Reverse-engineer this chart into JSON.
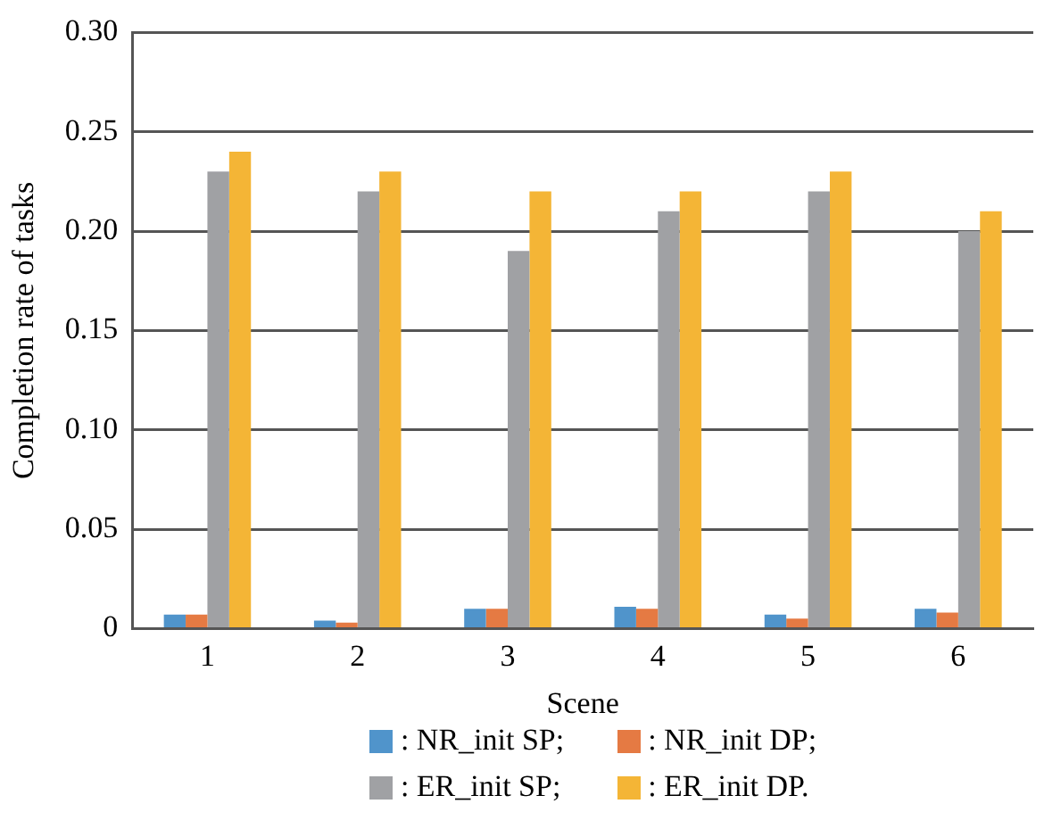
{
  "chart_data": {
    "type": "bar",
    "xlabel": "Scene",
    "ylabel": "Completion rate of tasks",
    "categories": [
      "1",
      "2",
      "3",
      "4",
      "5",
      "6"
    ],
    "series": [
      {
        "name": ": NR_init SP;",
        "color": "#5094cb",
        "values": [
          0.007,
          0.004,
          0.01,
          0.011,
          0.007,
          0.01
        ]
      },
      {
        "name": ": NR_init DP;",
        "color": "#e57a43",
        "values": [
          0.007,
          0.003,
          0.01,
          0.01,
          0.005,
          0.008
        ]
      },
      {
        "name": ": ER_init SP;",
        "color": "#a0a1a4",
        "values": [
          0.23,
          0.22,
          0.19,
          0.21,
          0.22,
          0.2
        ]
      },
      {
        "name": ": ER_init DP.",
        "color": "#f4b536",
        "values": [
          0.24,
          0.23,
          0.22,
          0.22,
          0.23,
          0.21
        ]
      }
    ],
    "ylim": [
      0,
      0.3
    ],
    "yticks": [
      {
        "value": 0,
        "label": "0"
      },
      {
        "value": 0.05,
        "label": "0.05"
      },
      {
        "value": 0.1,
        "label": "0.10"
      },
      {
        "value": 0.15,
        "label": "0.15"
      },
      {
        "value": 0.2,
        "label": "0.20"
      },
      {
        "value": 0.25,
        "label": "0.25"
      },
      {
        "value": 0.3,
        "label": "0.30"
      }
    ],
    "grid": "y",
    "legend": "bottom"
  }
}
